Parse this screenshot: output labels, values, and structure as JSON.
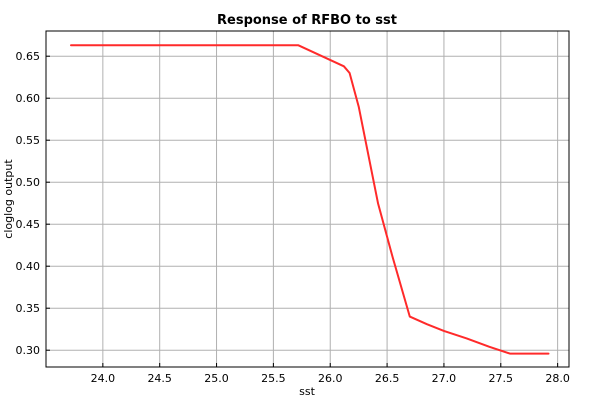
{
  "chart_data": {
    "type": "line",
    "title": "Response of RFBO to sst",
    "xlabel": "sst",
    "ylabel": "cloglog output",
    "xlim": [
      23.5,
      28.1
    ],
    "ylim": [
      0.28,
      0.68
    ],
    "xticks": [
      "24.0",
      "24.5",
      "25.0",
      "25.5",
      "26.0",
      "26.5",
      "27.0",
      "27.5",
      "28.0"
    ],
    "yticks": [
      "0.30",
      "0.35",
      "0.40",
      "0.45",
      "0.50",
      "0.55",
      "0.60",
      "0.65"
    ],
    "grid": true,
    "color": "#ff2a2a",
    "series": [
      {
        "x": [
          23.72,
          25.72,
          26.12,
          26.17,
          26.2,
          26.25,
          26.42,
          26.55,
          26.7,
          26.85,
          27.0,
          27.2,
          27.4,
          27.58,
          27.92
        ],
        "y": [
          0.663,
          0.663,
          0.638,
          0.63,
          0.615,
          0.59,
          0.475,
          0.41,
          0.34,
          0.331,
          0.323,
          0.314,
          0.304,
          0.296,
          0.296
        ]
      }
    ]
  }
}
